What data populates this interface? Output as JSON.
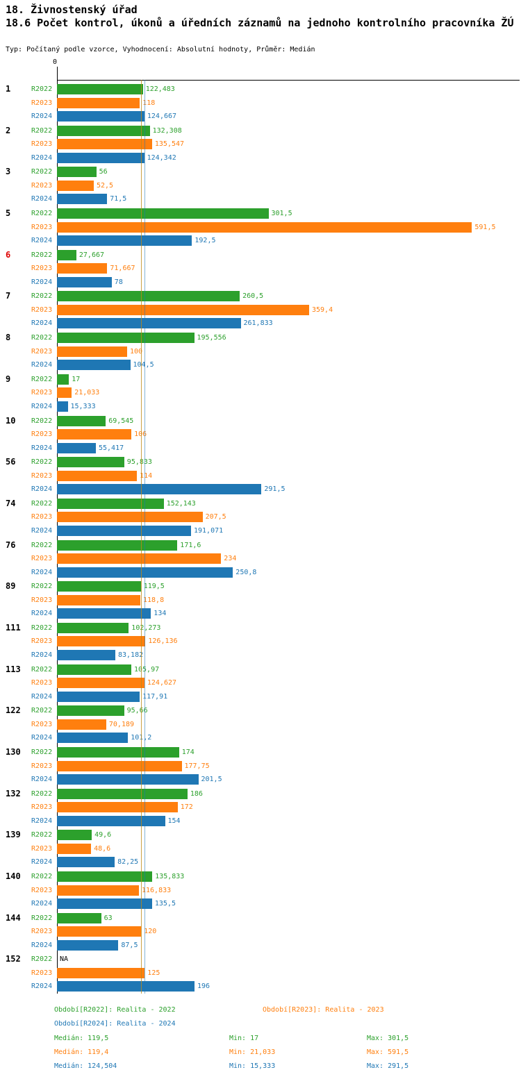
{
  "title": "18. Živnostenský úřad",
  "subtitle": "18.6 Počet kontrol, úkonů a úředních záznamů na jednoho kontrolního pracovníka ŽÚ",
  "meta": "Typ: Počítaný podle vzorce, Vyhodnocení: Absolutní hodnoty, Průměr: Medián",
  "axis": {
    "zero_label": "0"
  },
  "chart_data": {
    "type": "bar",
    "orientation": "horizontal",
    "title": "18.6 Počet kontrol, úkonů a úředních záznamů na jednoho kontrolního pracovníka ŽÚ",
    "series": [
      "R2022",
      "R2023",
      "R2024"
    ],
    "colors": [
      "#2ca02c",
      "#ff7f0e",
      "#1f77b4"
    ],
    "na_color": "#000000",
    "highlight_category_color": "#dd0000",
    "xlim": [
      0,
      656
    ],
    "grid": false,
    "legend_position": "bottom",
    "medians": [
      119.5,
      119.4,
      124.504
    ],
    "groups": [
      {
        "category": "1",
        "highlight": false,
        "values": [
          122.483,
          118,
          124.667
        ],
        "labels": [
          "122,483",
          "118",
          "124,667"
        ]
      },
      {
        "category": "2",
        "highlight": false,
        "values": [
          132.308,
          135.547,
          124.342
        ],
        "labels": [
          "132,308",
          "135,547",
          "124,342"
        ]
      },
      {
        "category": "3",
        "highlight": false,
        "values": [
          56,
          52.5,
          71.5
        ],
        "labels": [
          "56",
          "52,5",
          "71,5"
        ]
      },
      {
        "category": "5",
        "highlight": false,
        "values": [
          301.5,
          591.5,
          192.5
        ],
        "labels": [
          "301,5",
          "591,5",
          "192,5"
        ]
      },
      {
        "category": "6",
        "highlight": true,
        "values": [
          27.667,
          71.667,
          78
        ],
        "labels": [
          "27,667",
          "71,667",
          "78"
        ]
      },
      {
        "category": "7",
        "highlight": false,
        "values": [
          260.5,
          359.4,
          261.833
        ],
        "labels": [
          "260,5",
          "359,4",
          "261,833"
        ]
      },
      {
        "category": "8",
        "highlight": false,
        "values": [
          195.556,
          100,
          104.5
        ],
        "labels": [
          "195,556",
          "100",
          "104,5"
        ]
      },
      {
        "category": "9",
        "highlight": false,
        "values": [
          17,
          21.033,
          15.333
        ],
        "labels": [
          "17",
          "21,033",
          "15,333"
        ]
      },
      {
        "category": "10",
        "highlight": false,
        "values": [
          69.545,
          106,
          55.417
        ],
        "labels": [
          "69,545",
          "106",
          "55,417"
        ]
      },
      {
        "category": "56",
        "highlight": false,
        "values": [
          95.833,
          114,
          291.5
        ],
        "labels": [
          "95,833",
          "114",
          "291,5"
        ]
      },
      {
        "category": "74",
        "highlight": false,
        "values": [
          152.143,
          207.5,
          191.071
        ],
        "labels": [
          "152,143",
          "207,5",
          "191,071"
        ]
      },
      {
        "category": "76",
        "highlight": false,
        "values": [
          171.6,
          234,
          250.8
        ],
        "labels": [
          "171,6",
          "234",
          "250,8"
        ]
      },
      {
        "category": "89",
        "highlight": false,
        "values": [
          119.5,
          118.8,
          134
        ],
        "labels": [
          "119,5",
          "118,8",
          "134"
        ]
      },
      {
        "category": "111",
        "highlight": false,
        "values": [
          102.273,
          126.136,
          83.182
        ],
        "labels": [
          "102,273",
          "126,136",
          "83,182"
        ]
      },
      {
        "category": "113",
        "highlight": false,
        "values": [
          105.97,
          124.627,
          117.91
        ],
        "labels": [
          "105,97",
          "124,627",
          "117,91"
        ]
      },
      {
        "category": "122",
        "highlight": false,
        "values": [
          95.66,
          70.189,
          101.2
        ],
        "labels": [
          "95,66",
          "70,189",
          "101,2"
        ]
      },
      {
        "category": "130",
        "highlight": false,
        "values": [
          174,
          177.75,
          201.5
        ],
        "labels": [
          "174",
          "177,75",
          "201,5"
        ]
      },
      {
        "category": "132",
        "highlight": false,
        "values": [
          186,
          172,
          154
        ],
        "labels": [
          "186",
          "172",
          "154"
        ]
      },
      {
        "category": "139",
        "highlight": false,
        "values": [
          49.6,
          48.6,
          82.25
        ],
        "labels": [
          "49,6",
          "48,6",
          "82,25"
        ]
      },
      {
        "category": "140",
        "highlight": false,
        "values": [
          135.833,
          116.833,
          135.5
        ],
        "labels": [
          "135,833",
          "116,833",
          "135,5"
        ]
      },
      {
        "category": "144",
        "highlight": false,
        "values": [
          63,
          120,
          87.5
        ],
        "labels": [
          "63",
          "120",
          "87,5"
        ]
      },
      {
        "category": "152",
        "highlight": false,
        "values": [
          null,
          125,
          196
        ],
        "labels": [
          "NA",
          "125",
          "196"
        ]
      }
    ]
  },
  "legend": {
    "r2022": "Období[R2022]: Realita - 2022",
    "r2023": "Období[R2023]: Realita - 2023",
    "r2024": "Období[R2024]: Realita - 2024"
  },
  "stats": {
    "r2022": {
      "median": "Medián: 119,5",
      "min": "Min: 17",
      "max": "Max: 301,5"
    },
    "r2023": {
      "median": "Medián: 119,4",
      "min": "Min: 21,033",
      "max": "Max: 591,5"
    },
    "r2024": {
      "median": "Medián: 124,504",
      "min": "Min: 15,333",
      "max": "Max: 291,5"
    }
  }
}
